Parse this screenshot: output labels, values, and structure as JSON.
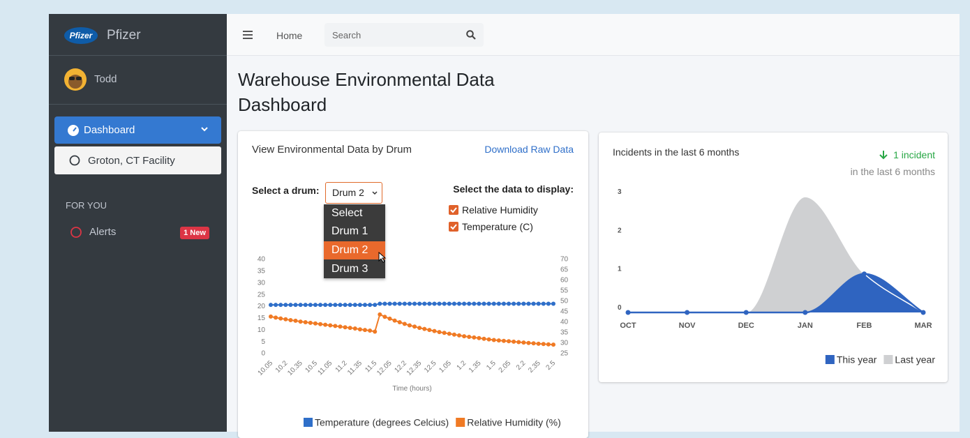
{
  "sidebar": {
    "logo_text": "Pfizer",
    "brand": "Pfizer",
    "user": "Todd",
    "menu": [
      "Dashboard",
      "Groton, CT Facility"
    ],
    "section": "FOR YOU",
    "alerts": {
      "label": "Alerts",
      "badge": "1 New"
    }
  },
  "topbar": {
    "home": "Home",
    "search": "Search"
  },
  "page_title": "Warehouse Environmental Data Dashboard",
  "drum_panel": {
    "title": "View Environmental Data by Drum",
    "download": "Download Raw Data",
    "select_label": "Select a drum:",
    "selected": "Drum 2",
    "options": [
      "Select",
      "Drum 1",
      "Drum 2",
      "Drum 3"
    ],
    "data_label": "Select the data to display:",
    "checkboxes": [
      "Relative Humidity",
      "Temperature (C)"
    ]
  },
  "chart_data": [
    {
      "type": "line",
      "x_label": "Time (hours)",
      "categories": [
        "10.05",
        null,
        null,
        "10.2",
        null,
        null,
        "10.35",
        null,
        null,
        "10.5",
        null,
        null,
        "11.05",
        null,
        null,
        "11.2",
        null,
        null,
        "11.35",
        null,
        null,
        "11.5",
        null,
        null,
        "12.05",
        null,
        null,
        "12.2",
        null,
        null,
        "12.35",
        null,
        null,
        "12.5",
        null,
        null,
        "1.05",
        null,
        null,
        "1.2",
        null,
        null,
        "1.35",
        null,
        null,
        "1.5",
        null,
        null,
        "2.05",
        null,
        null,
        "2.2",
        null,
        null,
        "2.35",
        null,
        null,
        "2.5"
      ],
      "series": [
        {
          "name": "Temperature (degrees Celcius)",
          "color": "#2f6fc9",
          "values": [
            20.7,
            20.7,
            20.7,
            20.7,
            20.7,
            20.7,
            20.7,
            20.7,
            20.7,
            20.7,
            20.7,
            20.7,
            20.7,
            20.7,
            20.7,
            20.7,
            20.7,
            20.7,
            20.7,
            20.7,
            20.7,
            20.7,
            21.2,
            21.2,
            21.2,
            21.2,
            21.2,
            21.2,
            21.2,
            21.2,
            21.2,
            21.2,
            21.2,
            21.2,
            21.2,
            21.2,
            21.2,
            21.2,
            21.2,
            21.2,
            21.2,
            21.2,
            21.2,
            21.2,
            21.2,
            21.2,
            21.2,
            21.2,
            21.2,
            21.2,
            21.2,
            21.2,
            21.2,
            21.2,
            21.2,
            21.2,
            21.2,
            21.2
          ]
        },
        {
          "name": "Relative Humidity (%)",
          "color": "#f07a24",
          "axis": "y2",
          "values": [
            42.7,
            42.2,
            41.8,
            41.4,
            41.0,
            40.7,
            40.3,
            40.0,
            39.7,
            39.4,
            39.1,
            38.8,
            38.5,
            38.2,
            37.9,
            37.6,
            37.3,
            37.0,
            36.6,
            36.3,
            36.0,
            35.5,
            43.7,
            42.6,
            41.7,
            40.8,
            40.0,
            39.2,
            38.5,
            37.9,
            37.3,
            36.8,
            36.3,
            35.8,
            35.3,
            34.9,
            34.5,
            34.1,
            33.7,
            33.3,
            33.0,
            32.7,
            32.4,
            32.1,
            31.8,
            31.5,
            31.3,
            31.1,
            30.9,
            30.7,
            30.5,
            30.3,
            30.1,
            29.9,
            29.7,
            29.6,
            29.4,
            29.3
          ]
        }
      ],
      "ylim": [
        0,
        40
      ],
      "yticks": [
        0,
        5,
        10,
        15,
        20,
        25,
        30,
        35,
        40
      ],
      "y2lim": [
        25,
        70
      ],
      "y2ticks": [
        25,
        30,
        35,
        40,
        45,
        50,
        55,
        60,
        65,
        70
      ],
      "grid": false,
      "legend": "bottom"
    },
    {
      "type": "area",
      "title": "Incidents in the last 6 months",
      "summary": {
        "value_text": "1 incident",
        "caption": "in the last 6 months"
      },
      "categories": [
        "OCT",
        "NOV",
        "DEC",
        "JAN",
        "FEB",
        "MAR"
      ],
      "series": [
        {
          "name": "This year",
          "color": "#2f64c0",
          "values": [
            0,
            0,
            0,
            0,
            1,
            0
          ]
        },
        {
          "name": "Last year",
          "color": "#cfd0d2",
          "values": [
            0,
            0,
            0,
            3,
            1,
            0
          ]
        }
      ],
      "ylim": [
        0,
        3.2
      ],
      "yticks": [
        0,
        1,
        2,
        3
      ],
      "grid": false,
      "legend": "bottom-right"
    }
  ]
}
